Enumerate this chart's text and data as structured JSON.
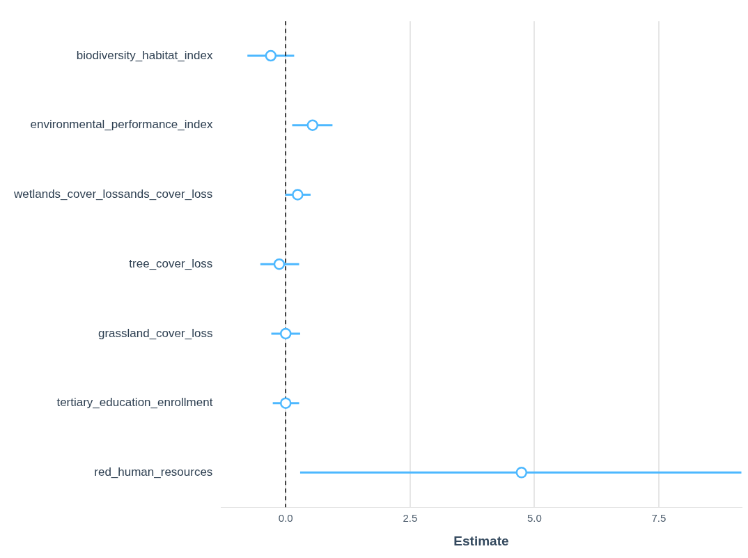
{
  "chart_data": {
    "type": "scatter",
    "orientation": "horizontal",
    "xlabel": "Estimate",
    "categories": [
      "biodiversity_habitat_index",
      "environmental_performance_index",
      "wetlands_cover_lossands_cover_loss",
      "tree_cover_loss",
      "grassland_cover_loss",
      "tertiary_education_enrollment",
      "red_human_resources"
    ],
    "values": [
      -0.3,
      0.54,
      0.24,
      -0.13,
      0.0,
      0.0,
      4.74
    ],
    "errors": [
      [
        -0.77,
        0.17
      ],
      [
        0.13,
        0.94
      ],
      [
        -0.01,
        0.5
      ],
      [
        -0.51,
        0.27
      ],
      [
        -0.29,
        0.29
      ],
      [
        -0.26,
        0.27
      ],
      [
        0.29,
        9.16
      ]
    ],
    "color": "#4db8ff",
    "xlim": [
      -1.3,
      9.16
    ],
    "xticks": [
      {
        "value": 0,
        "label": "0.0"
      },
      2.5,
      {
        "value": 5,
        "label": "5.0"
      },
      7.5
    ],
    "ref_lines": [
      {
        "axis": "x",
        "value": 0,
        "color": "#000000",
        "line_style": "dashed"
      }
    ],
    "grid": "x",
    "marker": "circle"
  }
}
